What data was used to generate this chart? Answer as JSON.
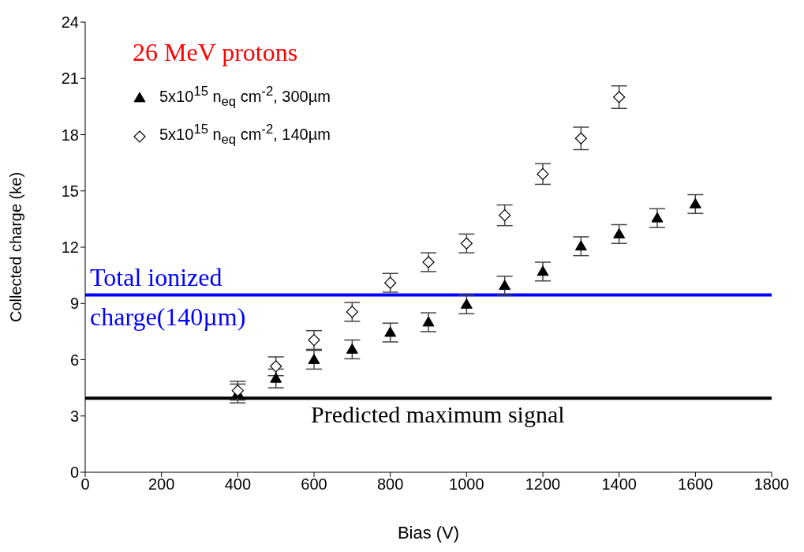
{
  "chart_data": {
    "type": "scatter",
    "xlabel": "Bias (V)",
    "ylabel": "Collected charge (ke)",
    "xlim": [
      0,
      1800
    ],
    "xticks": [
      0,
      200,
      400,
      600,
      800,
      1000,
      1200,
      1400,
      1600,
      1800
    ],
    "ylim": [
      0,
      24
    ],
    "yticks": [
      0,
      3,
      6,
      9,
      12,
      15,
      18,
      21,
      24
    ],
    "legend": "top left",
    "series": [
      {
        "name": "5x10$^{15}$ n$_{eq}$ cm$^{-2}$, 300µm",
        "color": "#000000",
        "marker": "triangle",
        "x": [
          400,
          500,
          600,
          700,
          800,
          900,
          1000,
          1100,
          1200,
          1300,
          1400,
          1500,
          1600
        ],
        "values": [
          4.2,
          5.0,
          6.0,
          6.55,
          7.45,
          8.0,
          8.95,
          9.95,
          10.7,
          12.05,
          12.7,
          13.55,
          14.3
        ],
        "errors": [
          0.5,
          0.5,
          0.5,
          0.5,
          0.5,
          0.5,
          0.5,
          0.5,
          0.5,
          0.5,
          0.5,
          0.5,
          0.5
        ]
      },
      {
        "name": "5x10$^{15}$ n$_{eq}$ cm$^{-2}$, 140µm",
        "color": "#000000",
        "marker": "diamond",
        "x": [
          400,
          500,
          600,
          700,
          800,
          900,
          1000,
          1100,
          1200,
          1300,
          1400
        ],
        "values": [
          4.35,
          5.65,
          7.05,
          8.55,
          10.1,
          11.2,
          12.2,
          13.7,
          15.9,
          17.8,
          20.0
        ],
        "errors": [
          0.5,
          0.5,
          0.5,
          0.5,
          0.5,
          0.5,
          0.5,
          0.55,
          0.55,
          0.6,
          0.6
        ]
      }
    ],
    "ref_lines": [
      {
        "axis": "y",
        "value": 9.45,
        "label": "Total ionized charge(140µm)",
        "color": "#0000ff"
      },
      {
        "axis": "y",
        "value": 3.95,
        "label": "Predicted maximum signal",
        "color": "#000000"
      }
    ],
    "annotations": [
      "26 MeV protons"
    ]
  }
}
